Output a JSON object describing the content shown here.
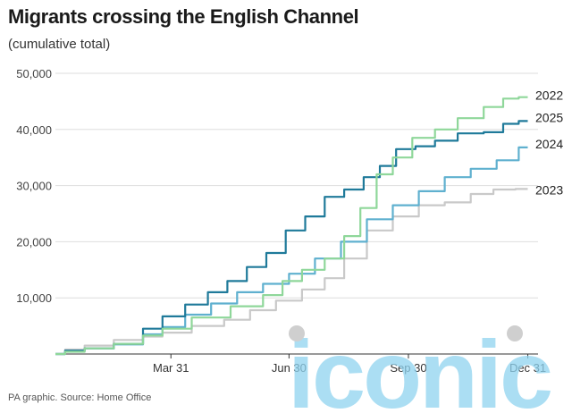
{
  "title": "Migrants crossing the English Channel",
  "subtitle": "(cumulative total)",
  "source": "PA graphic. Source: Home Office",
  "watermark": {
    "text": "iconic",
    "color": "#8fd3ef",
    "dot_color": "#cfcfcf"
  },
  "chart_data": {
    "type": "line",
    "title": "Migrants crossing the English Channel",
    "subtitle": "(cumulative total)",
    "xlabel": "",
    "ylabel": "",
    "xlim": [
      0,
      365
    ],
    "ylim": [
      0,
      50000
    ],
    "grid": "horizontal",
    "legend": "end-of-line labels, right",
    "y_ticks": [
      10000,
      20000,
      30000,
      40000,
      50000
    ],
    "y_tick_labels": [
      "10,000",
      "20,000",
      "30,000",
      "40,000",
      "50,000"
    ],
    "x_ticks": [
      89,
      180,
      272,
      364
    ],
    "x_tick_labels": [
      "Mar 31",
      "Jun 30",
      "Sep 30",
      "Dec 31"
    ],
    "series": [
      {
        "name": "2022",
        "color": "#8fd79a",
        "x": [
          0,
          15,
          30,
          60,
          75,
          90,
          120,
          150,
          170,
          180,
          200,
          215,
          230,
          240,
          255,
          265,
          285,
          300,
          320,
          340,
          350,
          364
        ],
        "y": [
          0,
          400,
          1000,
          1800,
          3300,
          4500,
          6500,
          8500,
          10500,
          13000,
          15000,
          17000,
          21000,
          26000,
          32000,
          35000,
          38500,
          40000,
          42000,
          44000,
          45500,
          45750
        ]
      },
      {
        "name": "2025",
        "color": "#1f7a9a",
        "x": [
          0,
          15,
          30,
          60,
          75,
          90,
          110,
          125,
          140,
          155,
          170,
          185,
          200,
          215,
          230,
          245,
          255,
          270,
          285,
          300,
          320,
          340,
          350,
          364
        ],
        "y": [
          0,
          600,
          1000,
          1800,
          4500,
          6700,
          8800,
          11000,
          13000,
          15500,
          18000,
          22000,
          24500,
          28000,
          29300,
          31500,
          33500,
          36500,
          37000,
          38000,
          39300,
          39500,
          41000,
          41500
        ]
      },
      {
        "name": "2024",
        "color": "#5fb0cf",
        "x": [
          0,
          15,
          30,
          60,
          75,
          90,
          110,
          130,
          150,
          170,
          190,
          210,
          230,
          250,
          270,
          290,
          310,
          330,
          350,
          364
        ],
        "y": [
          0,
          500,
          1000,
          1700,
          3500,
          4800,
          7000,
          9000,
          11000,
          12500,
          14300,
          17000,
          20000,
          24000,
          26500,
          29000,
          31500,
          33000,
          34500,
          36800
        ]
      },
      {
        "name": "2023",
        "color": "#c9c9c9",
        "x": [
          0,
          15,
          30,
          60,
          75,
          90,
          120,
          140,
          160,
          180,
          200,
          215,
          230,
          250,
          270,
          290,
          310,
          330,
          345,
          364
        ],
        "y": [
          0,
          800,
          1500,
          2500,
          3100,
          3800,
          5000,
          6100,
          7800,
          9500,
          11500,
          13500,
          17000,
          22000,
          24500,
          26500,
          27000,
          28500,
          29300,
          29400
        ]
      }
    ]
  }
}
